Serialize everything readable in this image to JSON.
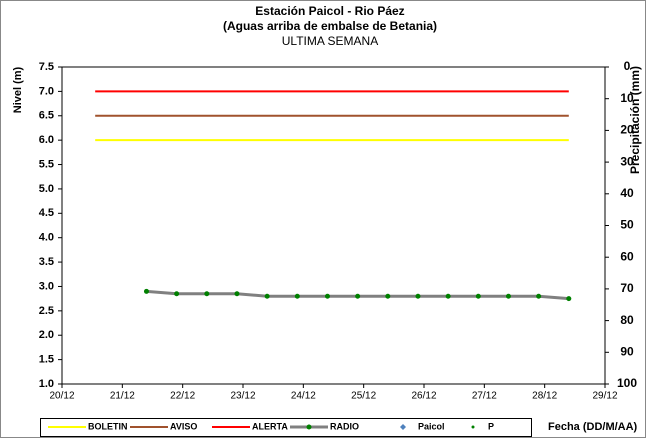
{
  "chart_data": {
    "type": "line",
    "title": "Estación Paicol  - Rio Páez",
    "subtitle": "(Aguas arriba de embalse de Betania)",
    "subtitle2": "ULTIMA SEMANA",
    "y_label": "Nivel (m)",
    "y2_label": "Precipitación (mm)",
    "x_label": "Fecha  (DD/M/AA)",
    "xlim": [
      20,
      29
    ],
    "xticks": [
      {
        "value": 20,
        "label": "20/12"
      },
      {
        "value": 21,
        "label": "21/12"
      },
      {
        "value": 22,
        "label": "22/12"
      },
      {
        "value": 23,
        "label": "23/12"
      },
      {
        "value": 24,
        "label": "24/12"
      },
      {
        "value": 25,
        "label": "25/12"
      },
      {
        "value": 26,
        "label": "26/12"
      },
      {
        "value": 27,
        "label": "27/12"
      },
      {
        "value": 28,
        "label": "28/12"
      },
      {
        "value": 29,
        "label": "29/12"
      }
    ],
    "ylim": [
      1.0,
      7.5
    ],
    "yticks": [
      {
        "value": 1.0,
        "label": "1.0"
      },
      {
        "value": 1.5,
        "label": "1.5"
      },
      {
        "value": 2.0,
        "label": "2.0"
      },
      {
        "value": 2.5,
        "label": "2.5"
      },
      {
        "value": 3.0,
        "label": "3.0"
      },
      {
        "value": 3.5,
        "label": "3.5"
      },
      {
        "value": 4.0,
        "label": "4.0"
      },
      {
        "value": 4.5,
        "label": "4.5"
      },
      {
        "value": 5.0,
        "label": "5.0"
      },
      {
        "value": 5.5,
        "label": "5.5"
      },
      {
        "value": 6.0,
        "label": "6.0"
      },
      {
        "value": 6.5,
        "label": "6.5"
      },
      {
        "value": 7.0,
        "label": "7.0"
      },
      {
        "value": 7.5,
        "label": "7.5"
      }
    ],
    "y2lim": [
      100,
      0
    ],
    "y2ticks": [
      0,
      10,
      20,
      30,
      40,
      50,
      60,
      70,
      80,
      90,
      100
    ],
    "series": [
      {
        "name": "BOLETIN",
        "color": "#ffff00",
        "style": "line",
        "x": [
          20.55,
          28.4
        ],
        "values": [
          6.0,
          6.0
        ]
      },
      {
        "name": "AVISO",
        "color": "#a0522d",
        "style": "line",
        "x": [
          20.55,
          28.4
        ],
        "values": [
          6.5,
          6.5
        ]
      },
      {
        "name": "ALERTA",
        "color": "#ff0000",
        "style": "line",
        "x": [
          20.55,
          28.4
        ],
        "values": [
          7.0,
          7.0
        ]
      },
      {
        "name": "RADIO",
        "color": "#808080",
        "marker_color": "#008000",
        "style": "line-marker",
        "x": [
          21.4,
          21.9,
          22.4,
          22.9,
          23.4,
          23.9,
          24.4,
          24.9,
          25.4,
          25.9,
          26.4,
          26.9,
          27.4,
          27.9,
          28.4
        ],
        "values": [
          2.9,
          2.85,
          2.85,
          2.85,
          2.8,
          2.8,
          2.8,
          2.8,
          2.8,
          2.8,
          2.8,
          2.8,
          2.8,
          2.8,
          2.75
        ]
      },
      {
        "name": "Paicol",
        "color": "#4f81bd",
        "style": "diamond",
        "x": [],
        "values": []
      },
      {
        "name": "P",
        "color": "#008000",
        "style": "dot",
        "x": [],
        "values": []
      }
    ]
  }
}
